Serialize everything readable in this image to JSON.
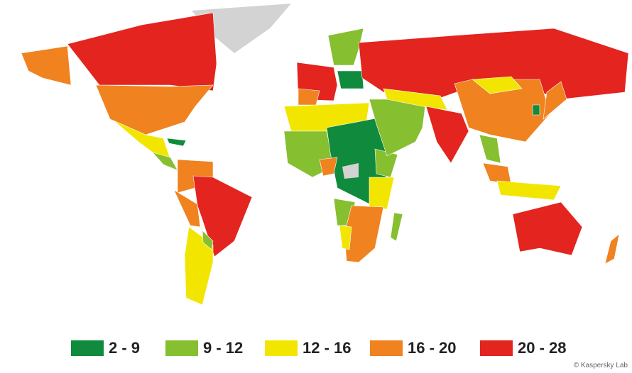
{
  "legend": {
    "items": [
      {
        "label": "2 - 9",
        "color": "#108a3c"
      },
      {
        "label": "9 - 12",
        "color": "#86bf2f"
      },
      {
        "label": "12 - 16",
        "color": "#f2e600"
      },
      {
        "label": "16 - 20",
        "color": "#f08220"
      },
      {
        "label": "20 - 28",
        "color": "#e3241f"
      }
    ]
  },
  "copyright": "© Kaspersky Lab"
}
